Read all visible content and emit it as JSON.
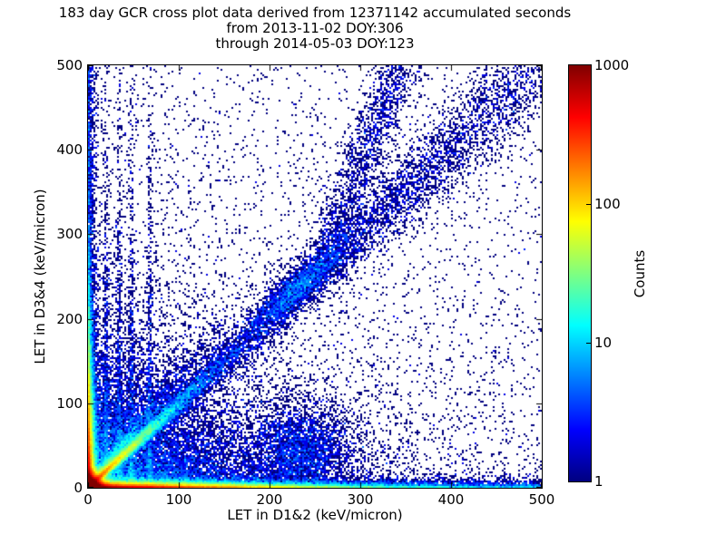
{
  "title": {
    "line1": "183 day GCR cross plot data derived from 12371142 accumulated seconds",
    "line2": "from 2013-11-02 DOY:306",
    "line3": "through 2014-05-03 DOY:123"
  },
  "chart_data": {
    "type": "heatmap",
    "subtype": "2d-histogram-scatter",
    "title": "183 day GCR cross plot data derived from 12371142 accumulated seconds from 2013-11-02 DOY:306 through 2014-05-03 DOY:123",
    "xlabel": "LET in D1&2 (keV/micron)",
    "ylabel": "LET in D3&4 (keV/micron)",
    "xlim": [
      0,
      500
    ],
    "ylim": [
      0,
      500
    ],
    "xticks": [
      0,
      100,
      200,
      300,
      400,
      500
    ],
    "yticks": [
      0,
      100,
      200,
      300,
      400,
      500
    ],
    "grid": false,
    "background": "#ffffff",
    "point_color_min": "#000080",
    "colorbar": {
      "label": "Counts",
      "scale": "log",
      "min": 1,
      "max": 1000,
      "ticks": [
        1000,
        100,
        10,
        1
      ],
      "inner_tick_values": [
        100,
        10
      ],
      "colormap": "jet",
      "gradient_stops": [
        {
          "color": "#000080",
          "pos": 0
        },
        {
          "color": "#0000ff",
          "pos": 12.5
        },
        {
          "color": "#00ffff",
          "pos": 37.5
        },
        {
          "color": "#ffff00",
          "pos": 62.5
        },
        {
          "color": "#ff0000",
          "pos": 87.5
        },
        {
          "color": "#800000",
          "pos": 100
        }
      ]
    },
    "bin_size_px": 2,
    "seed": 1337,
    "features": [
      "very hot (>1000 counts, dark red) core at the origin",
      "hot band hugging the x-axis: red to ~x=50, orange/yellow to ~150, green-cyan to ~350, blue speckle to 500",
      "hot band hugging the y-axis: red/orange to ~y=60, yellow to ~120, cyan to ~220, blue dots to 500",
      "bright y=x diagonal, orange/yellow knots below ~40 keV/micron, fading to a widening blue band to (500,500)",
      "fainter second diagonal of slope ~1.3 near the origin",
      "dense blue cluster (iron peak) on the diagonal near (235,240)",
      "diffuse branch rising from ~(260,260) to ~(340,500)",
      "faint vertical streaks at x ~ 20, 34, 48, 68",
      "diffuse blue cloud filling the lower-left wedge and sparse dots decaying toward the upper right"
    ],
    "components": [
      {
        "name": "origin-hot-core",
        "type": "xy",
        "n": 150000,
        "x": {
          "dist": "exp",
          "scale": 4
        },
        "y": {
          "dist": "exp",
          "scale": 4
        }
      },
      {
        "name": "bottom-axis-band",
        "type": "xy",
        "n": 55000,
        "x": {
          "dist": "exp",
          "scale": 80
        },
        "y": {
          "dist": "exp",
          "scale": 2.2
        }
      },
      {
        "name": "bottom-axis-tail",
        "type": "xy",
        "n": 3500,
        "x": {
          "dist": "uniform",
          "min": 0,
          "max": 500
        },
        "y": {
          "dist": "exp",
          "scale": 3.5
        }
      },
      {
        "name": "left-axis-band",
        "type": "xy",
        "n": 26000,
        "x": {
          "dist": "exp",
          "scale": 2.2
        },
        "y": {
          "dist": "exp",
          "scale": 55
        }
      },
      {
        "name": "left-axis-tail",
        "type": "xy",
        "n": 1500,
        "x": {
          "dist": "exp",
          "scale": 3.5
        },
        "y": {
          "dist": "uniform",
          "min": 0,
          "max": 500
        }
      },
      {
        "name": "main-diagonal-bright",
        "type": "diag",
        "n": 15000,
        "t": {
          "dist": "exp",
          "scale": 35
        },
        "slope": 1,
        "intercept": 0,
        "sigma_base": 1.2,
        "sigma_grow": 0.04
      },
      {
        "name": "main-diagonal-tail",
        "type": "diag",
        "n": 6500,
        "t": {
          "dist": "uniform",
          "min": 0,
          "max": 500
        },
        "slope": 1,
        "intercept": 0,
        "sigma_base": 2,
        "sigma_grow": 0.045
      },
      {
        "name": "second-diagonal",
        "type": "diag",
        "n": 2500,
        "t": {
          "dist": "exp",
          "scale": 40
        },
        "slope": 1.3,
        "intercept": 2,
        "sigma_base": 1.5,
        "sigma_grow": 0.05
      },
      {
        "name": "iron-peak-cluster",
        "type": "diag",
        "n": 1800,
        "t": {
          "dist": "gauss",
          "mu": 235,
          "sigma": 22
        },
        "slope": 1,
        "intercept": 5,
        "sigma_base": 9,
        "sigma_grow": 0
      },
      {
        "name": "stopping-branch-upper",
        "type": "diag_y",
        "n": 1600,
        "t": {
          "dist": "uniform",
          "min": 260,
          "max": 500
        },
        "slope": 0.345,
        "intercept": 170,
        "sigma": 13
      },
      {
        "name": "lower-left-cloud",
        "type": "xy",
        "n": 15000,
        "x": {
          "dist": "exp",
          "scale": 90
        },
        "y": {
          "dist": "exp",
          "scale": 55
        }
      },
      {
        "name": "sparse-decaying",
        "type": "xy",
        "n": 8000,
        "x": {
          "dist": "uniform",
          "min": 0,
          "max": 500
        },
        "y": {
          "dist": "uniform",
          "min": 0,
          "max": 500
        },
        "accept_scale": 400
      },
      {
        "name": "sparse-uniform",
        "type": "xy",
        "n": 1200,
        "x": {
          "dist": "uniform",
          "min": 0,
          "max": 500
        },
        "y": {
          "dist": "uniform",
          "min": 0,
          "max": 500
        }
      },
      {
        "name": "vertical-streaks",
        "type": "vlines",
        "n": 2400,
        "xs": [
          20,
          34,
          48,
          68
        ],
        "jitter": 1.5,
        "y": {
          "dist": "exp",
          "scale": 150
        }
      },
      {
        "name": "below-diagonal-blob",
        "type": "xy",
        "n": 2500,
        "x": {
          "dist": "gauss",
          "mu": 235,
          "sigma": 28
        },
        "y": {
          "dist": "gauss",
          "mu": 45,
          "sigma": 28
        }
      }
    ]
  }
}
